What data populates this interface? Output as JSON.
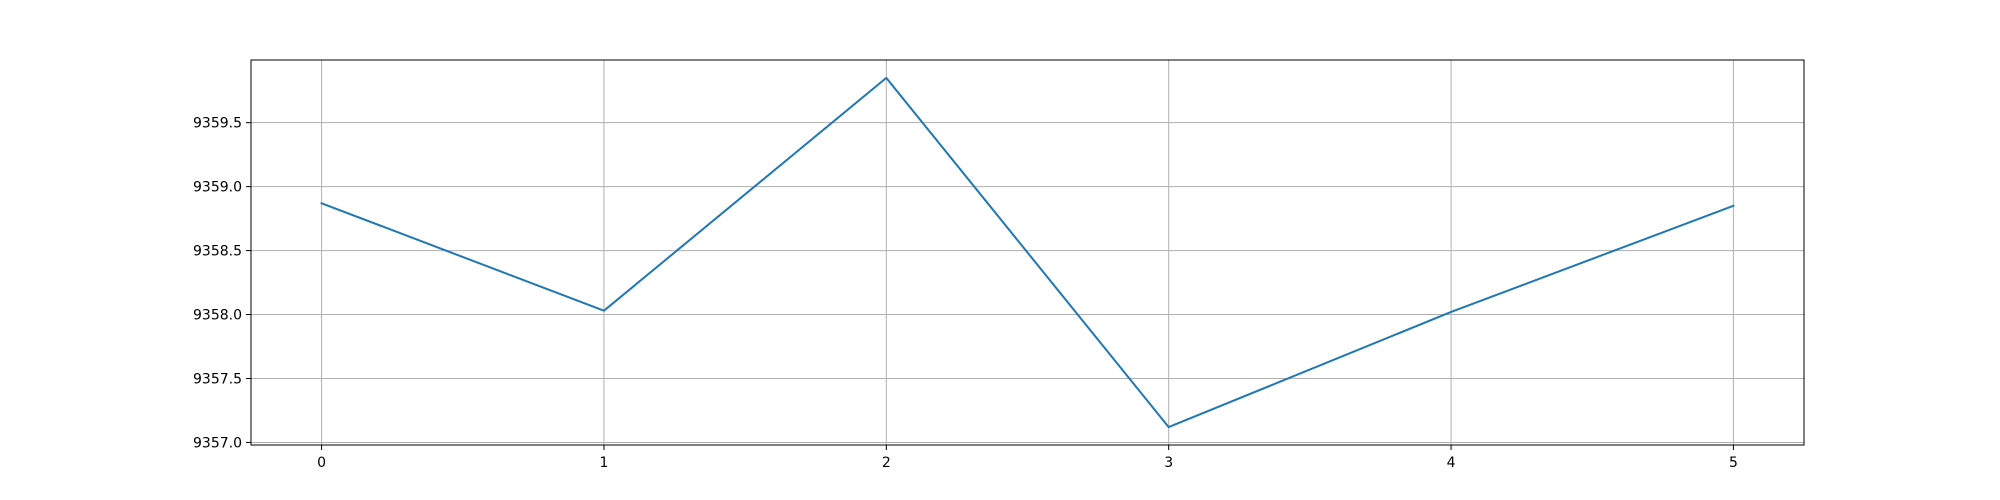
{
  "chart_data": {
    "type": "line",
    "title": "",
    "xlabel": "",
    "ylabel": "",
    "x": [
      0,
      1,
      2,
      3,
      4,
      5
    ],
    "series": [
      {
        "values": [
          9358.87,
          9358.03,
          9359.85,
          9357.12,
          9358.02,
          9358.85
        ],
        "color": "#1f77b4"
      }
    ],
    "xlim": [
      -0.25,
      5.25
    ],
    "ylim": [
      9356.98,
      9359.99
    ],
    "xticks": [
      0,
      1,
      2,
      3,
      4,
      5
    ],
    "xtick_labels": [
      "0",
      "1",
      "2",
      "3",
      "4",
      "5"
    ],
    "yticks": [
      9357.0,
      9357.5,
      9358.0,
      9358.5,
      9359.0,
      9359.5
    ],
    "ytick_labels": [
      "9357.0",
      "9357.5",
      "9358.0",
      "9358.5",
      "9359.0",
      "9359.5"
    ],
    "grid": true,
    "legend": "none"
  }
}
